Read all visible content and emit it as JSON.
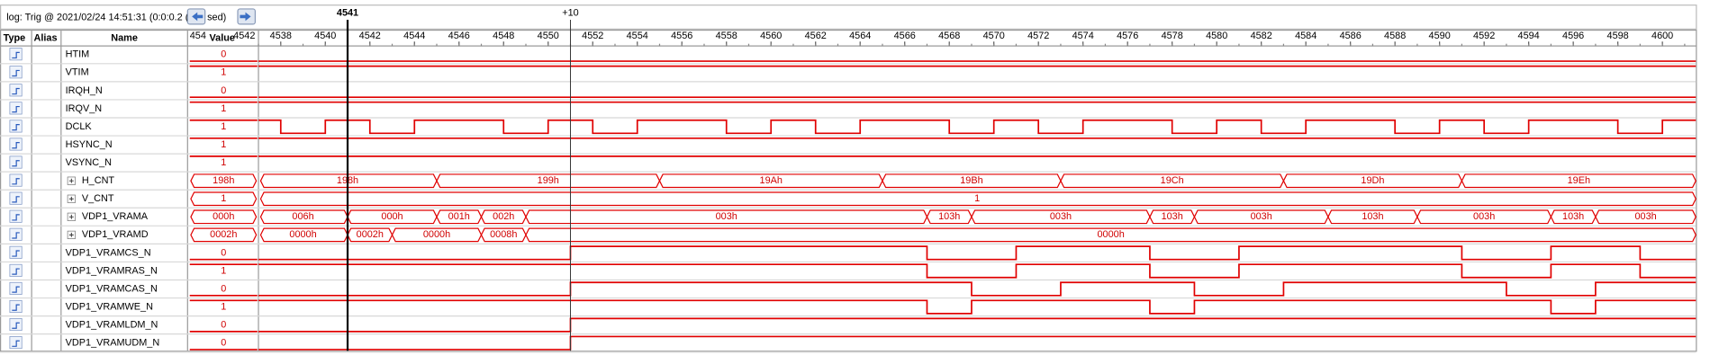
{
  "header": {
    "title": "log: Trig @ 2021/02/24 14:51:31 (0:0:0.2 (",
    "title_tail": "sed)"
  },
  "columns": [
    "Type",
    "Alias",
    "Name",
    "Value"
  ],
  "value_header_ticks": [
    "454",
    "4542"
  ],
  "timeline": {
    "start": 4537,
    "end": 4601.5,
    "cursor": 4541,
    "delta_label": "+10",
    "delta_at": 4551,
    "ticks": [
      4538,
      4540,
      4542,
      4544,
      4546,
      4548,
      4550,
      4552,
      4554,
      4556,
      4558,
      4560,
      4562,
      4564,
      4566,
      4568,
      4570,
      4572,
      4574,
      4576,
      4578,
      4580,
      4582,
      4584,
      4586,
      4588,
      4590,
      4592,
      4594,
      4596,
      4598,
      4600
    ]
  },
  "signals": [
    {
      "name": "HTIM",
      "value": "0",
      "start": 0,
      "edges": []
    },
    {
      "name": "VTIM",
      "value": "1",
      "start": 1,
      "edges": []
    },
    {
      "name": "IRQH_N",
      "value": "0",
      "start": 0,
      "edges": []
    },
    {
      "name": "IRQV_N",
      "value": "1",
      "start": 1,
      "edges": []
    },
    {
      "name": "DCLK",
      "value": "1",
      "start": 1,
      "edges": [
        4538,
        4540,
        4542,
        4544,
        4548,
        4550,
        4552,
        4554,
        4558,
        4560,
        4562,
        4564,
        4568,
        4570,
        4572,
        4574,
        4578,
        4580,
        4582,
        4584,
        4588,
        4590,
        4592,
        4594,
        4598,
        4600
      ]
    },
    {
      "name": "HSYNC_N",
      "value": "1",
      "start": 1,
      "edges": []
    },
    {
      "name": "VSYNC_N",
      "value": "1",
      "start": 1,
      "edges": []
    },
    {
      "name": "H_CNT",
      "value": "198h",
      "labels": [
        "198h",
        "199h",
        "19Ah",
        "19Bh",
        "19Ch",
        "19Dh",
        "19Eh"
      ],
      "edges": [
        4545,
        4555,
        4565,
        4573,
        4583,
        4591
      ]
    },
    {
      "name": "V_CNT",
      "value": "1",
      "labels": [
        "1"
      ],
      "edges": []
    },
    {
      "name": "VDP1_VRAMA",
      "value": "000h",
      "labels": [
        "006h",
        "000h",
        "001h",
        "002h",
        "003h",
        "103h",
        "003h",
        "103h",
        "003h",
        "103h",
        "003h",
        "103h",
        "003h"
      ],
      "edges": [
        4541,
        4545,
        4547,
        4549,
        4567,
        4569,
        4577,
        4579,
        4585,
        4589,
        4595,
        4597
      ]
    },
    {
      "name": "VDP1_VRAMD",
      "value": "0002h",
      "labels": [
        "0000h",
        "0002h",
        "0000h",
        "0008h",
        "0000h"
      ],
      "edges": [
        4541,
        4543,
        4547,
        4549
      ]
    },
    {
      "name": "VDP1_VRAMCS_N",
      "value": "0",
      "start": 0,
      "edges": [
        4551,
        4567,
        4571,
        4577,
        4581,
        4591,
        4595,
        4599
      ]
    },
    {
      "name": "VDP1_VRAMRAS_N",
      "value": "1",
      "start": 1,
      "edges": [
        4567,
        4571,
        4577,
        4581,
        4591,
        4595,
        4599
      ]
    },
    {
      "name": "VDP1_VRAMCAS_N",
      "value": "0",
      "start": 0,
      "edges": [
        4551,
        4569,
        4573,
        4579,
        4583,
        4593,
        4597
      ]
    },
    {
      "name": "VDP1_VRAMWE_N",
      "value": "1",
      "start": 1,
      "edges": [
        4567,
        4569,
        4577,
        4579,
        4595,
        4597
      ]
    },
    {
      "name": "VDP1_VRAMLDM_N",
      "value": "0",
      "start": 0,
      "edges": [
        4551
      ]
    },
    {
      "name": "VDP1_VRAMUDM_N",
      "value": "0",
      "start": 0,
      "edges": [
        4551
      ]
    }
  ]
}
